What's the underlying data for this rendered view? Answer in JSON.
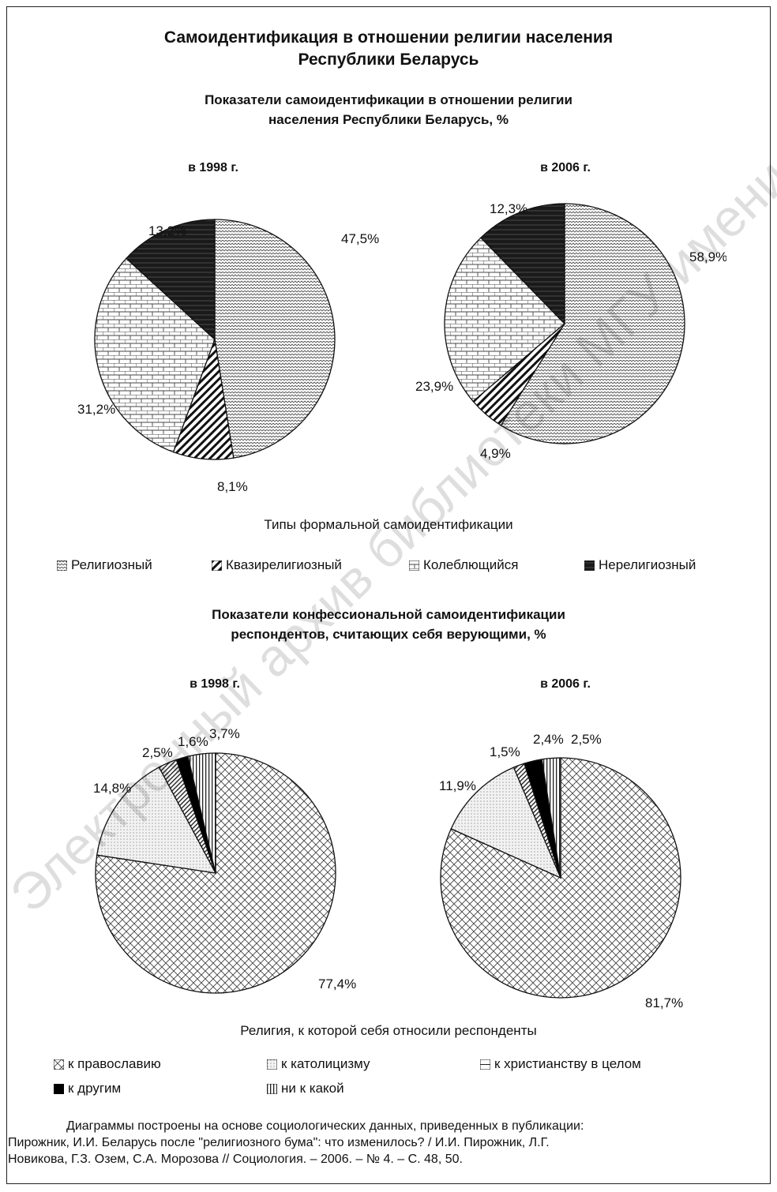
{
  "title_line1": "Самоидентификация в отношении религии населения",
  "title_line2": "Республики Беларусь",
  "watermark_text": "Электронный архив библиотеки МГУ имени А.А. Кулешова",
  "section1": {
    "title_line1": "Показатели самоидентификации в отношении религии",
    "title_line2": "населения Республики Беларусь, %",
    "legend_title": "Типы формальной самоидентификации",
    "legend": [
      "Религиозный",
      "Квазирелигиозный",
      "Колеблющийся",
      "Нерелигиозный"
    ]
  },
  "section2": {
    "title_line1": "Показатели конфессиональной самоидентификации",
    "title_line2": "респондентов, считающих себя верующими, %",
    "legend_title": "Религия, к которой себя относили респонденты",
    "legend": [
      "к православию",
      "к католицизму",
      "к христианству в целом",
      "к другим",
      "ни к какой"
    ]
  },
  "footnote": {
    "line1": "Диаграммы построены на основе социологических данных, приведенных в публикации:",
    "line2": "Пирожник, И.И. Беларусь после \"религиозного бума\": что изменилось? / И.И. Пирожник, Л.Г.",
    "line3": "Новикова, Г.З. Озем, С.А. Морозова // Социология. – 2006. – № 4. – С. 48, 50."
  },
  "chart_data": [
    {
      "type": "pie",
      "title": "в 1998 г.",
      "categories": [
        "Религиозный",
        "Квазирелигиозный",
        "Колеблющийся",
        "Нерелигиозный"
      ],
      "values": [
        47.5,
        8.1,
        31.2,
        13.2
      ],
      "labels": [
        "47,5%",
        "8,1%",
        "31,2%",
        "13,2%"
      ],
      "patterns": [
        "#p-rel",
        "#p-quasi",
        "#p-brick",
        "#p-dark"
      ]
    },
    {
      "type": "pie",
      "title": "в 2006 г.",
      "categories": [
        "Религиозный",
        "Квазирелигиозный",
        "Колеблющийся",
        "Нерелигиозный"
      ],
      "values": [
        58.9,
        4.9,
        23.9,
        12.3
      ],
      "labels": [
        "58,9%",
        "4,9%",
        "23,9%",
        "12,3%"
      ],
      "patterns": [
        "#p-rel",
        "#p-quasi",
        "#p-brick",
        "#p-dark"
      ]
    },
    {
      "type": "pie",
      "title": "в 1998 г.",
      "categories": [
        "к православию",
        "к католицизму",
        "к христианству в целом",
        "к другим",
        "ни к какой"
      ],
      "values": [
        77.4,
        14.8,
        2.5,
        1.6,
        3.7
      ],
      "labels": [
        "77,4%",
        "14,8%",
        "2,5%",
        "1,6%",
        "3,7%"
      ],
      "patterns": [
        "#p-cross",
        "#p-dots",
        "#p-diag",
        "#p-black",
        "#p-vert"
      ]
    },
    {
      "type": "pie",
      "title": "в 2006 г.",
      "categories": [
        "к православию",
        "к католицизму",
        "к христианству в целом",
        "к другим",
        "ни к какой"
      ],
      "values": [
        81.7,
        11.9,
        1.5,
        2.4,
        2.5
      ],
      "labels": [
        "81,7%",
        "11,9%",
        "1,5%",
        "2,4%",
        "2,5%"
      ],
      "patterns": [
        "#p-cross",
        "#p-dots",
        "#p-diag",
        "#p-black",
        "#p-vert"
      ]
    }
  ]
}
